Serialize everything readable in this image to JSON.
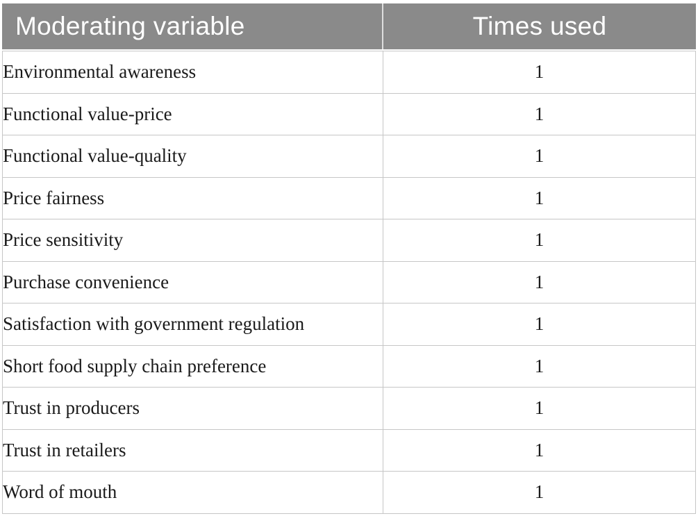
{
  "table": {
    "header": {
      "col1": "Moderating variable",
      "col2": "Times used"
    },
    "rows": [
      {
        "variable": "Environmental awareness",
        "times": "1"
      },
      {
        "variable": "Functional value-price",
        "times": "1"
      },
      {
        "variable": "Functional value-quality",
        "times": "1"
      },
      {
        "variable": "Price fairness",
        "times": "1"
      },
      {
        "variable": "Price sensitivity",
        "times": "1"
      },
      {
        "variable": "Purchase convenience",
        "times": "1"
      },
      {
        "variable": "Satisfaction with government regulation",
        "times": "1"
      },
      {
        "variable": "Short food supply chain preference",
        "times": "1"
      },
      {
        "variable": "Trust in producers",
        "times": "1"
      },
      {
        "variable": "Trust in retailers",
        "times": "1"
      },
      {
        "variable": "Word of mouth",
        "times": "1"
      }
    ],
    "colors": {
      "header_bg": "#8a8a8a",
      "header_text": "#ffffff",
      "cell_border": "#c6c6c6",
      "body_text": "#1a1a1a"
    }
  }
}
